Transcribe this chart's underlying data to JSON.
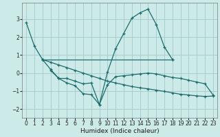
{
  "xlabel": "Humidex (Indice chaleur)",
  "background_color": "#cceae8",
  "grid_color": "#aacccc",
  "line_color": "#1a6b6b",
  "xlim": [
    -0.5,
    23.5
  ],
  "ylim": [
    -2.5,
    3.9
  ],
  "xticks": [
    0,
    1,
    2,
    3,
    4,
    5,
    6,
    7,
    8,
    9,
    10,
    11,
    12,
    13,
    14,
    15,
    16,
    17,
    18,
    19,
    20,
    21,
    22,
    23
  ],
  "yticks": [
    -2,
    -1,
    0,
    1,
    2,
    3
  ],
  "series": [
    {
      "x": [
        0,
        1,
        2,
        3,
        4,
        5,
        6,
        7,
        8,
        9,
        10,
        11,
        12,
        13,
        14,
        15,
        16,
        17,
        18
      ],
      "y": [
        2.8,
        1.5,
        0.75,
        0.2,
        -0.3,
        -0.55,
        -0.7,
        -1.15,
        -1.2,
        -1.75,
        0.05,
        1.35,
        2.2,
        3.05,
        3.35,
        3.55,
        2.7,
        1.45,
        0.75
      ]
    },
    {
      "x": [
        2,
        18
      ],
      "y": [
        0.75,
        0.75
      ]
    },
    {
      "x": [
        2,
        3,
        4,
        5,
        6,
        7,
        8,
        9,
        10,
        11,
        12,
        13,
        14,
        15,
        16,
        17,
        18,
        19,
        20,
        21,
        22,
        23
      ],
      "y": [
        0.75,
        0.6,
        0.45,
        0.3,
        0.15,
        0.0,
        -0.15,
        -0.3,
        -0.45,
        -0.55,
        -0.65,
        -0.75,
        -0.82,
        -0.88,
        -0.95,
        -1.02,
        -1.1,
        -1.18,
        -1.22,
        -1.27,
        -1.3,
        -1.28
      ]
    },
    {
      "x": [
        3,
        4,
        5,
        6,
        7,
        8,
        9,
        10,
        11,
        12,
        13,
        14,
        15,
        16,
        17,
        18,
        19,
        20,
        21,
        22,
        23
      ],
      "y": [
        0.15,
        -0.3,
        -0.3,
        -0.45,
        -0.6,
        -0.55,
        -1.75,
        -0.65,
        -0.2,
        -0.15,
        -0.1,
        -0.05,
        0.0,
        -0.05,
        -0.15,
        -0.25,
        -0.3,
        -0.4,
        -0.5,
        -0.6,
        -1.22
      ]
    }
  ]
}
